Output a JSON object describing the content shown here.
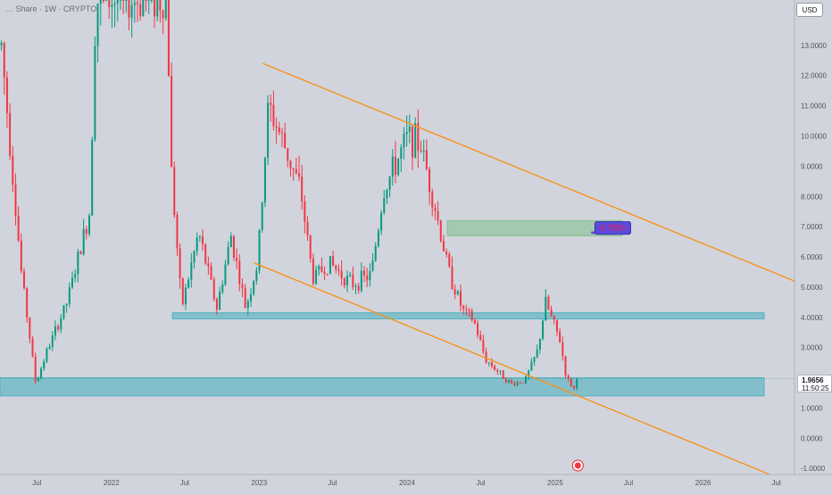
{
  "header": {
    "symbol_title": "… Share · 1W · CRYPTO"
  },
  "currency_label": "USD",
  "last_price": {
    "value": "1.9656",
    "countdown": "11:50:25"
  },
  "colors": {
    "background": "#d1d4dc",
    "up_candle": "#089981",
    "down_candle": "#f23645",
    "channel_line": "#f7931a",
    "support_zone": "#4fb1c0",
    "target_zone": "#7fc08a",
    "target_label_bg": "#5b4bdb",
    "target_label_text": "#ff1744"
  },
  "chart_data": {
    "type": "candlestick",
    "y_axis": {
      "range": [
        -1.2,
        14.5
      ],
      "ticks": [
        "-1.0000",
        "0.0000",
        "1.0000",
        "2.0000",
        "3.0000",
        "4.0000",
        "5.0000",
        "6.0000",
        "7.0000",
        "8.0000",
        "9.0000",
        "10.0000",
        "11.0000",
        "12.0000",
        "13.0000"
      ],
      "tick_values": [
        -1,
        0,
        1,
        2,
        3,
        4,
        5,
        6,
        7,
        8,
        9,
        10,
        11,
        12,
        13
      ]
    },
    "x_axis": {
      "range": [
        "2021-04-01",
        "2026-08-15"
      ],
      "ticks": [
        {
          "label": "Jul",
          "date": "2021-07-01"
        },
        {
          "label": "2022",
          "date": "2022-01-01"
        },
        {
          "label": "Jul",
          "date": "2022-07-01"
        },
        {
          "label": "2023",
          "date": "2023-01-01"
        },
        {
          "label": "Jul",
          "date": "2023-07-01"
        },
        {
          "label": "2024",
          "date": "2024-01-01"
        },
        {
          "label": "Jul",
          "date": "2024-07-01"
        },
        {
          "label": "2025",
          "date": "2025-01-01"
        },
        {
          "label": "Jul",
          "date": "2025-07-01"
        },
        {
          "label": "2026",
          "date": "2026-01-01"
        },
        {
          "label": "Jul",
          "date": "2026-07-01"
        }
      ]
    },
    "anchors": [
      {
        "date": "2021-04-01",
        "close": 13.0
      },
      {
        "date": "2021-05-20",
        "close": 5.5
      },
      {
        "date": "2021-06-25",
        "close": 1.8
      },
      {
        "date": "2021-07-20",
        "close": 2.8
      },
      {
        "date": "2021-09-10",
        "close": 4.5
      },
      {
        "date": "2021-11-05",
        "close": 7.5
      },
      {
        "date": "2021-11-20",
        "close": 14.5
      },
      {
        "date": "2022-05-15",
        "close": 14.5
      },
      {
        "date": "2022-05-25",
        "close": 9.0
      },
      {
        "date": "2022-06-20",
        "close": 4.3
      },
      {
        "date": "2022-08-01",
        "close": 6.8
      },
      {
        "date": "2022-09-15",
        "close": 4.3
      },
      {
        "date": "2022-10-20",
        "close": 6.7
      },
      {
        "date": "2022-11-25",
        "close": 4.3
      },
      {
        "date": "2022-12-25",
        "close": 5.8
      },
      {
        "date": "2023-01-20",
        "close": 11.0
      },
      {
        "date": "2023-02-20",
        "close": 10.0
      },
      {
        "date": "2023-04-10",
        "close": 8.2
      },
      {
        "date": "2023-05-10",
        "close": 5.3
      },
      {
        "date": "2023-06-20",
        "close": 5.8
      },
      {
        "date": "2023-08-15",
        "close": 5.1
      },
      {
        "date": "2023-10-01",
        "close": 5.4
      },
      {
        "date": "2023-11-01",
        "close": 8.2
      },
      {
        "date": "2024-01-01",
        "close": 10.0
      },
      {
        "date": "2024-02-01",
        "close": 9.7
      },
      {
        "date": "2024-03-01",
        "close": 8.0
      },
      {
        "date": "2024-04-10",
        "close": 5.5
      },
      {
        "date": "2024-05-15",
        "close": 4.2
      },
      {
        "date": "2024-06-10",
        "close": 3.9
      },
      {
        "date": "2024-07-10",
        "close": 2.6
      },
      {
        "date": "2024-09-10",
        "close": 1.8
      },
      {
        "date": "2024-10-15",
        "close": 1.9
      },
      {
        "date": "2024-11-15",
        "close": 2.9
      },
      {
        "date": "2024-12-05",
        "close": 4.5
      },
      {
        "date": "2025-01-10",
        "close": 3.2
      },
      {
        "date": "2025-01-25",
        "close": 2.0
      },
      {
        "date": "2025-02-15",
        "close": 1.6
      },
      {
        "date": "2025-02-26",
        "close": 1.9656
      }
    ],
    "trendlines": [
      {
        "name": "upper-channel",
        "from": {
          "date": "2023-01-10",
          "price": 12.4
        },
        "to": {
          "date": "2026-08-15",
          "price": 5.2
        }
      },
      {
        "name": "lower-channel",
        "from": {
          "date": "2022-12-20",
          "price": 5.8
        },
        "to": {
          "date": "2026-06-15",
          "price": -1.2
        }
      }
    ],
    "zones": [
      {
        "name": "upper-support",
        "from": "2022-06-01",
        "to": "2026-06-01",
        "low": 3.95,
        "high": 4.15
      },
      {
        "name": "lower-support",
        "from": "2021-04-01",
        "to": "2026-06-01",
        "low": 1.4,
        "high": 2.0
      },
      {
        "name": "target-zone",
        "from": "2024-04-10",
        "to": "2025-06-15",
        "low": 6.7,
        "high": 7.2
      }
    ],
    "target": {
      "label": "6.7500",
      "value": 6.75,
      "date": "2025-06-01"
    },
    "last_price_value": 1.9656
  }
}
